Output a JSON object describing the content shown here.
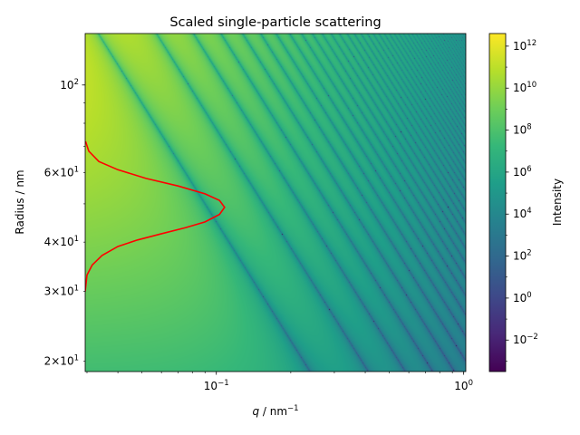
{
  "chart_data": {
    "type": "heatmap",
    "title": "Scaled single-particle scattering",
    "xlabel": {
      "var": "q",
      "unit": " / nm",
      "exp": "−1"
    },
    "ylabel": "Radius / nm",
    "colorbar_label": "Intensity",
    "x_scale": "log",
    "y_scale": "log",
    "xlim": [
      0.0295,
      1.02
    ],
    "ylim": [
      18.8,
      135
    ],
    "colorbar_scale": "log",
    "colorbar_range_exp": [
      -3.5,
      12.6
    ],
    "colormap": "viridis",
    "x_ticks": [
      {
        "value": 0.1,
        "base": "10",
        "exp": "−1"
      },
      {
        "value": 1,
        "base": "10",
        "exp": "0"
      }
    ],
    "y_ticks": [
      {
        "value": 20,
        "coef": "2",
        "exp": "1"
      },
      {
        "value": 30,
        "coef": "3",
        "exp": "1"
      },
      {
        "value": 40,
        "coef": "4",
        "exp": "1"
      },
      {
        "value": 60,
        "coef": "6",
        "exp": "1"
      },
      {
        "value": 100,
        "base": "10",
        "exp": "2"
      }
    ],
    "colorbar_ticks": [
      {
        "exp_value": -2,
        "exp": "−2"
      },
      {
        "exp_value": 0,
        "exp": "0"
      },
      {
        "exp_value": 2,
        "exp": "2"
      },
      {
        "exp_value": 4,
        "exp": "4"
      },
      {
        "exp_value": 6,
        "exp": "6"
      },
      {
        "exp_value": 8,
        "exp": "8"
      },
      {
        "exp_value": 10,
        "exp": "10"
      },
      {
        "exp_value": 12,
        "exp": "12"
      }
    ],
    "size_distribution": {
      "color": "#ff0000",
      "peak_radius": 49,
      "peak_q": 0.108,
      "baseline_q": 0.0295,
      "points": [
        {
          "r": 33,
          "q": 0.03
        },
        {
          "r": 35,
          "q": 0.0315
        },
        {
          "r": 37,
          "q": 0.0345
        },
        {
          "r": 39,
          "q": 0.04
        },
        {
          "r": 40.5,
          "q": 0.048
        },
        {
          "r": 42,
          "q": 0.06
        },
        {
          "r": 43.5,
          "q": 0.075
        },
        {
          "r": 45,
          "q": 0.09
        },
        {
          "r": 47,
          "q": 0.103
        },
        {
          "r": 49,
          "q": 0.108
        },
        {
          "r": 51,
          "q": 0.103
        },
        {
          "r": 53,
          "q": 0.09
        },
        {
          "r": 55.5,
          "q": 0.07
        },
        {
          "r": 58,
          "q": 0.052
        },
        {
          "r": 61,
          "q": 0.04
        },
        {
          "r": 64,
          "q": 0.0335
        },
        {
          "r": 68,
          "q": 0.0305
        },
        {
          "r": 72,
          "q": 0.0296
        }
      ]
    }
  }
}
